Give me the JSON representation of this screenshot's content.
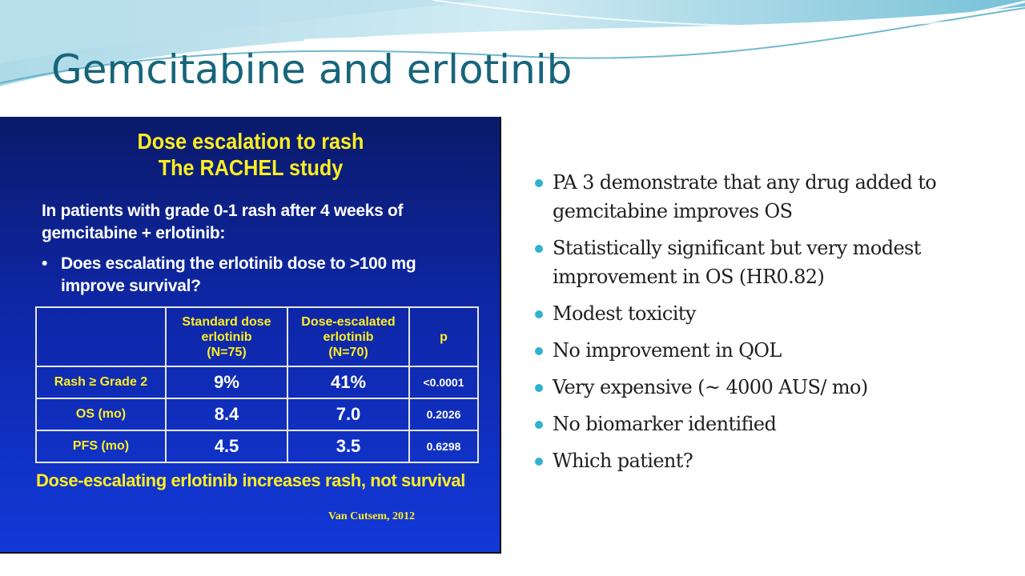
{
  "slide": {
    "title": "Gemcitabine and erlotinib"
  },
  "figure": {
    "title_line1": "Dose escalation to rash",
    "title_line2": "The RACHEL study",
    "intro": "In patients with grade 0-1 rash after 4 weeks of gemcitabine + erlotinib:",
    "bullet_glyph": "•",
    "question": "Does escalating the erlotinib dose to >100 mg improve survival?",
    "table": {
      "columns": [
        {
          "line1": "Standard dose",
          "line2": "erlotinib",
          "line3": "(N=75)"
        },
        {
          "line1": "Dose-escalated",
          "line2": "erlotinib",
          "line3": "(N=70)"
        },
        {
          "line1": "p"
        }
      ],
      "rows": [
        {
          "label": "Rash ≥ Grade 2",
          "standard": "9%",
          "escalated": "41%",
          "p": "<0.0001"
        },
        {
          "label": "OS (mo)",
          "standard": "8.4",
          "escalated": "7.0",
          "p": "0.2026"
        },
        {
          "label": "PFS (mo)",
          "standard": "4.5",
          "escalated": "3.5",
          "p": "0.6298"
        }
      ]
    },
    "conclusion": "Dose-escalating erlotinib increases rash, not survival",
    "citation": "Van Cutsem, 2012"
  },
  "bullets": [
    "PA 3 demonstrate that any drug added to gemcitabine improves OS",
    "Statistically significant but very modest improvement in OS (HR0.82)",
    "Modest toxicity",
    "No improvement in QOL",
    "Very expensive (~ 4000 AUS/ mo)",
    "No biomarker identified",
    "Which patient?"
  ],
  "colors": {
    "title": "#17657a",
    "accent_teal": "#2db3cf",
    "figure_yellow": "#ffee22",
    "figure_blue": "#0e27a8"
  }
}
